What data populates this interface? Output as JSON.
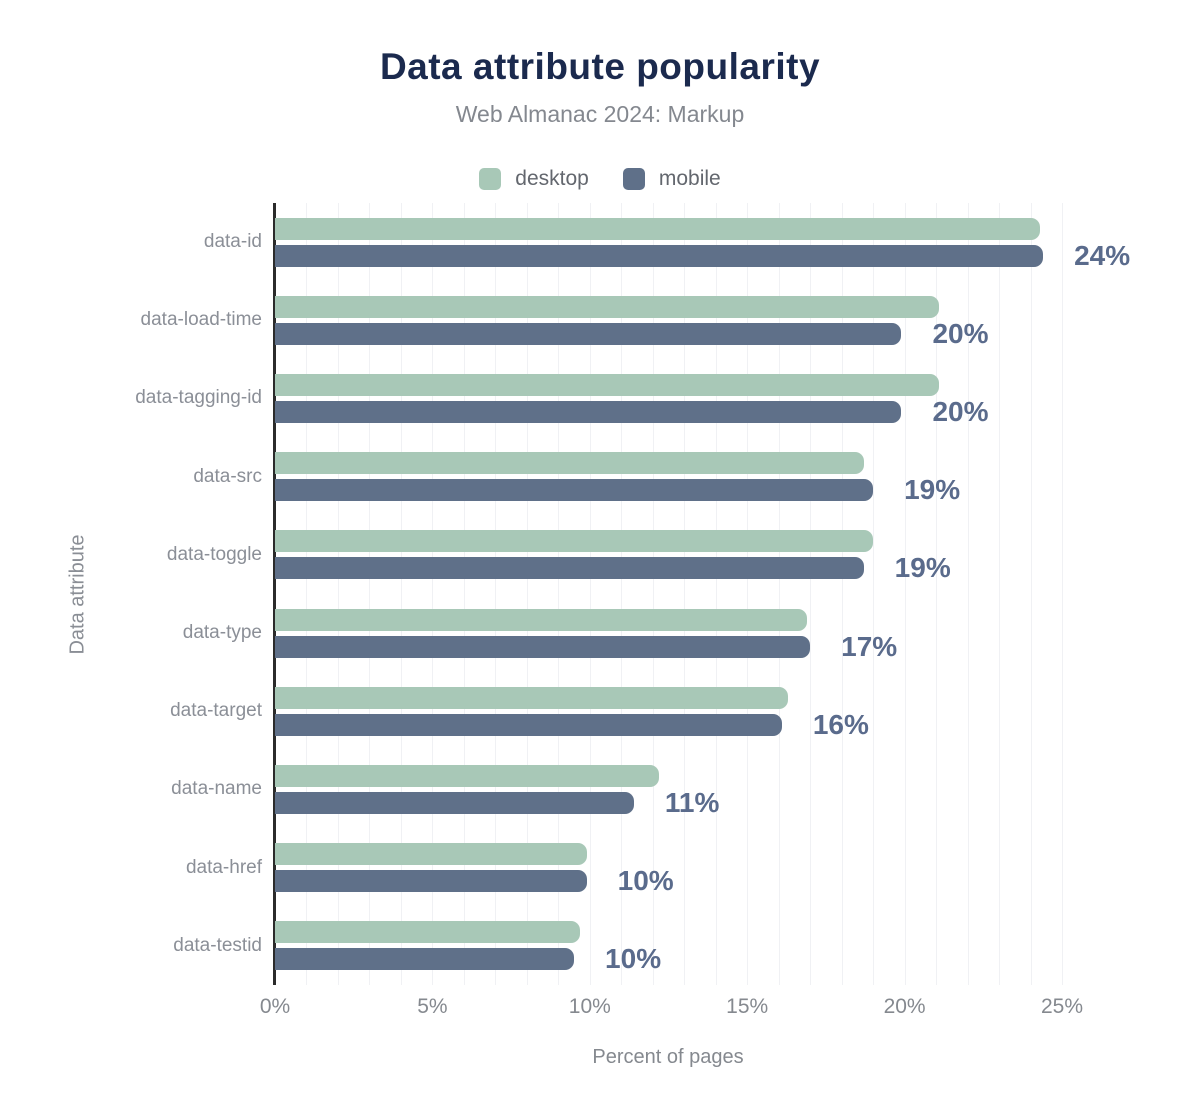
{
  "header": {
    "title": "Data attribute popularity",
    "subtitle": "Web Almanac 2024: Markup"
  },
  "legend": [
    {
      "name": "desktop",
      "label": "desktop",
      "color": "#a8c8b7"
    },
    {
      "name": "mobile",
      "label": "mobile",
      "color": "#5f7089"
    }
  ],
  "colors": {
    "desktop_bar": "#a8c8b7",
    "mobile_bar": "#5f7089",
    "value_label": "#5a6b8c",
    "title": "#1b2a4e",
    "axis_text": "#85898f",
    "gridline": "#f0f1f4",
    "axis_line": "#2b2b2b"
  },
  "chart_data": {
    "type": "bar",
    "orientation": "horizontal",
    "title": "Data attribute popularity",
    "subtitle": "Web Almanac 2024: Markup",
    "xlabel": "Percent of pages",
    "ylabel": "Data attribute",
    "xlim": [
      0,
      25
    ],
    "x_tick_labels": [
      "0%",
      "5%",
      "10%",
      "15%",
      "20%",
      "25%"
    ],
    "x_tick_values": [
      0,
      5,
      10,
      15,
      20,
      25
    ],
    "grid": "vertical, 1% spacing, 0-25%",
    "legend_position": "top-center",
    "categories": [
      "data-id",
      "data-load-time",
      "data-tagging-id",
      "data-src",
      "data-toggle",
      "data-type",
      "data-target",
      "data-name",
      "data-href",
      "data-testid"
    ],
    "series": [
      {
        "name": "desktop",
        "values": [
          24.3,
          21.1,
          21.1,
          18.7,
          19.0,
          16.9,
          16.3,
          12.2,
          9.9,
          9.7
        ]
      },
      {
        "name": "mobile",
        "values": [
          24.4,
          19.9,
          19.9,
          19.0,
          18.7,
          17.0,
          16.1,
          11.4,
          9.9,
          9.5
        ]
      }
    ],
    "value_labels": [
      "24%",
      "20%",
      "20%",
      "19%",
      "19%",
      "17%",
      "16%",
      "11%",
      "10%",
      "10%"
    ]
  }
}
